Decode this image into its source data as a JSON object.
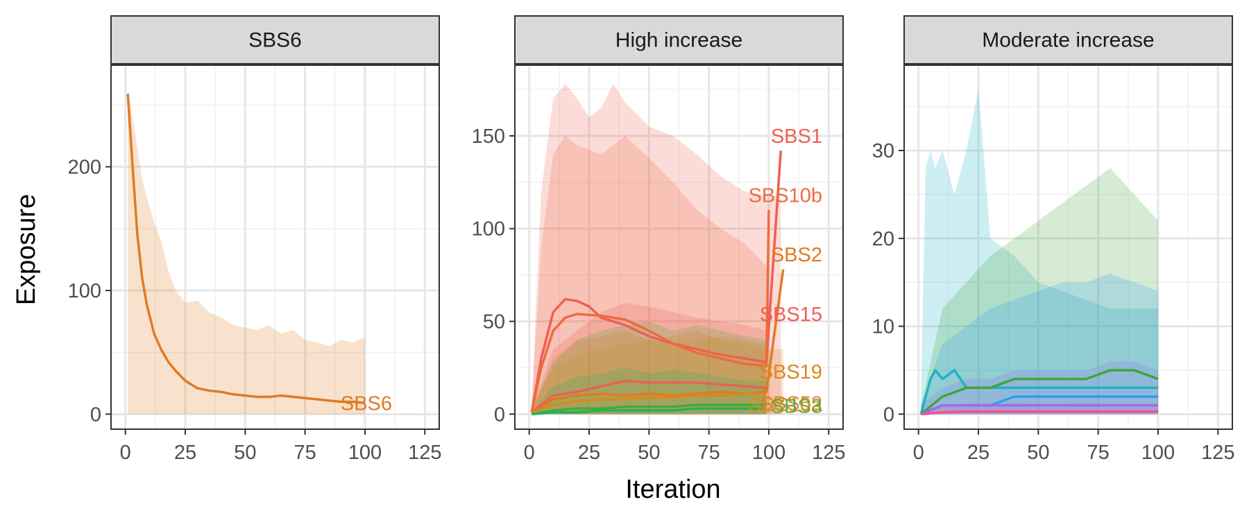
{
  "figure": {
    "xlabel": "Iteration",
    "ylabel": "Exposure"
  },
  "chart_data": [
    {
      "type": "line",
      "panel": "SBS6",
      "title": "SBS6",
      "xlim": [
        0,
        125
      ],
      "ylim": [
        0,
        270
      ],
      "x_ticks": [
        0,
        25,
        50,
        75,
        100,
        125
      ],
      "y_ticks": [
        0,
        100,
        200
      ],
      "grid": true,
      "series": [
        {
          "name": "SBS6",
          "color": "#e07b21",
          "x": [
            1,
            3,
            5,
            7,
            9,
            12,
            15,
            18,
            21,
            25,
            30,
            35,
            40,
            45,
            50,
            55,
            60,
            65,
            70,
            75,
            80,
            85,
            90,
            95,
            100
          ],
          "y": [
            259,
            200,
            145,
            110,
            88,
            65,
            52,
            42,
            35,
            27,
            21,
            19,
            18,
            16,
            15,
            14,
            14,
            15,
            14,
            13,
            12,
            11,
            10,
            10,
            9
          ],
          "band_upper": [
            262,
            240,
            215,
            190,
            175,
            155,
            140,
            115,
            100,
            90,
            92,
            82,
            78,
            72,
            70,
            68,
            72,
            65,
            68,
            60,
            58,
            55,
            60,
            58,
            62
          ],
          "band_lower": [
            0,
            0,
            0,
            0,
            0,
            0,
            0,
            0,
            0,
            0,
            0,
            0,
            0,
            0,
            0,
            0,
            0,
            0,
            0,
            0,
            0,
            0,
            0,
            0,
            0
          ]
        }
      ]
    },
    {
      "type": "line",
      "panel": "High increase",
      "title": "High increase",
      "xlim": [
        0,
        125
      ],
      "ylim": [
        0,
        180
      ],
      "x_ticks": [
        0,
        25,
        50,
        75,
        100,
        125
      ],
      "y_ticks": [
        0,
        50,
        100,
        150
      ],
      "grid": true,
      "series": [
        {
          "name": "SBS1",
          "color": "#ef5f53",
          "x": [
            1,
            5,
            10,
            15,
            20,
            25,
            30,
            35,
            40,
            50,
            60,
            70,
            80,
            90,
            99,
            105
          ],
          "y": [
            1,
            30,
            55,
            62,
            61,
            58,
            52,
            50,
            48,
            42,
            38,
            35,
            32,
            30,
            28,
            142
          ],
          "band_upper": [
            5,
            120,
            170,
            178,
            170,
            160,
            165,
            178,
            168,
            155,
            150,
            140,
            128,
            120,
            118,
            118
          ],
          "band_lower": [
            0,
            0,
            0,
            0,
            0,
            0,
            0,
            0,
            0,
            0,
            0,
            0,
            0,
            0,
            0,
            0
          ]
        },
        {
          "name": "SBS10b",
          "color": "#ee6b3c",
          "x": [
            1,
            5,
            10,
            15,
            20,
            30,
            40,
            50,
            60,
            70,
            80,
            90,
            99,
            100
          ],
          "y": [
            1,
            25,
            45,
            52,
            54,
            53,
            51,
            45,
            38,
            33,
            30,
            27,
            26,
            110
          ],
          "band_upper": [
            5,
            90,
            140,
            150,
            145,
            140,
            150,
            138,
            125,
            110,
            100,
            92,
            80,
            80
          ],
          "band_lower": [
            0,
            0,
            0,
            0,
            0,
            0,
            0,
            0,
            0,
            0,
            0,
            0,
            0,
            0
          ]
        },
        {
          "name": "SBS2",
          "color": "#e07b21",
          "x": [
            1,
            10,
            20,
            30,
            40,
            50,
            60,
            70,
            80,
            90,
            99,
            106
          ],
          "y": [
            1,
            8,
            10,
            11,
            10,
            11,
            10,
            11,
            12,
            11,
            12,
            78
          ],
          "band_upper": [
            3,
            30,
            40,
            42,
            45,
            40,
            42,
            45,
            40,
            38,
            35,
            35
          ],
          "band_lower": [
            0,
            0,
            0,
            0,
            0,
            0,
            0,
            0,
            0,
            0,
            0,
            0
          ]
        },
        {
          "name": "SBS15",
          "color": "#ef5f53",
          "x": [
            1,
            10,
            20,
            30,
            40,
            50,
            60,
            70,
            80,
            90,
            99
          ],
          "y": [
            1,
            10,
            12,
            15,
            18,
            17,
            17,
            17,
            16,
            15,
            14
          ],
          "band_upper": [
            3,
            35,
            45,
            55,
            60,
            58,
            55,
            52,
            50,
            48,
            45
          ],
          "band_lower": [
            0,
            0,
            0,
            0,
            0,
            0,
            0,
            0,
            0,
            0,
            0
          ]
        },
        {
          "name": "SBS19",
          "color": "#d98a1a",
          "x": [
            1,
            10,
            20,
            30,
            40,
            50,
            60,
            70,
            80,
            90,
            99
          ],
          "y": [
            1,
            5,
            7,
            8,
            8,
            9,
            9,
            10,
            10,
            11,
            11
          ],
          "band_upper": [
            3,
            25,
            32,
            35,
            38,
            40,
            38,
            40,
            42,
            40,
            38
          ],
          "band_lower": [
            0,
            0,
            0,
            0,
            0,
            0,
            0,
            0,
            0,
            0,
            0
          ]
        },
        {
          "name": "",
          "color": "#4aa936",
          "x": [
            1,
            10,
            20,
            30,
            40,
            50,
            60,
            70,
            80,
            90,
            99
          ],
          "y": [
            0,
            2,
            3,
            3,
            4,
            4,
            4,
            5,
            5,
            5,
            5
          ],
          "band_upper": [
            2,
            28,
            40,
            45,
            48,
            50,
            45,
            48,
            45,
            42,
            40
          ],
          "band_lower": [
            0,
            0,
            0,
            0,
            0,
            0,
            0,
            0,
            0,
            0,
            0
          ]
        },
        {
          "name": "",
          "color": "#21b35a",
          "x": [
            1,
            10,
            20,
            30,
            40,
            50,
            60,
            70,
            80,
            90,
            99
          ],
          "y": [
            0,
            1,
            1,
            2,
            2,
            2,
            2,
            3,
            3,
            3,
            3
          ],
          "band_upper": [
            1,
            15,
            20,
            22,
            25,
            22,
            24,
            22,
            20,
            18,
            18
          ],
          "band_lower": [
            0,
            0,
            0,
            0,
            0,
            0,
            0,
            0,
            0,
            0,
            0
          ]
        }
      ],
      "overlapping_labels": [
        "SBS52",
        "SBS10a",
        "SBS3"
      ]
    },
    {
      "type": "line",
      "panel": "Moderate increase",
      "title": "Moderate increase",
      "xlim": [
        0,
        125
      ],
      "ylim": [
        0,
        38
      ],
      "x_ticks": [
        0,
        25,
        50,
        75,
        100,
        125
      ],
      "y_ticks": [
        0,
        10,
        20,
        30
      ],
      "grid": true,
      "series": [
        {
          "name": "",
          "color": "#1cb3c4",
          "x": [
            1,
            3,
            5,
            7,
            10,
            15,
            20,
            25,
            30,
            40,
            50,
            60,
            70,
            80,
            90,
            100
          ],
          "y": [
            0,
            2,
            4,
            5,
            4,
            5,
            3,
            3,
            3,
            3,
            3,
            3,
            3,
            3,
            3,
            3
          ],
          "band_upper": [
            2,
            28,
            30,
            28,
            30,
            25,
            30,
            37,
            20,
            18,
            15,
            14,
            13,
            12,
            12,
            12
          ],
          "band_lower": [
            0,
            0,
            0,
            0,
            0,
            0,
            0,
            0,
            0,
            0,
            0,
            0,
            0,
            0,
            0,
            0
          ]
        },
        {
          "name": "",
          "color": "#3fa53a",
          "x": [
            1,
            10,
            20,
            30,
            40,
            50,
            60,
            70,
            80,
            90,
            100
          ],
          "y": [
            0,
            2,
            3,
            3,
            4,
            4,
            4,
            4,
            5,
            5,
            4
          ],
          "band_upper": [
            1,
            12,
            15,
            18,
            20,
            22,
            24,
            26,
            28,
            25,
            22
          ],
          "band_lower": [
            0,
            0,
            0,
            0,
            0,
            0,
            0,
            0,
            0,
            0,
            0
          ]
        },
        {
          "name": "",
          "color": "#2a9df4",
          "x": [
            1,
            10,
            20,
            30,
            40,
            50,
            60,
            70,
            80,
            90,
            100
          ],
          "y": [
            0,
            1,
            1,
            1,
            2,
            2,
            2,
            2,
            2,
            2,
            2
          ],
          "band_upper": [
            1,
            8,
            10,
            12,
            13,
            14,
            15,
            15,
            16,
            15,
            14
          ],
          "band_lower": [
            0,
            0,
            0,
            0,
            0,
            0,
            0,
            0,
            0,
            0,
            0
          ]
        },
        {
          "name": "",
          "color": "#9b6cf0",
          "x": [
            1,
            10,
            20,
            30,
            40,
            50,
            60,
            70,
            80,
            90,
            100
          ],
          "y": [
            0,
            1,
            1,
            1,
            1,
            1,
            1,
            1,
            1,
            1,
            1
          ],
          "band_upper": [
            1,
            3,
            4,
            4,
            5,
            5,
            5,
            5,
            6,
            6,
            5
          ],
          "band_lower": [
            0,
            0,
            0,
            0,
            0,
            0,
            0,
            0,
            0,
            0,
            0
          ]
        },
        {
          "name": "",
          "color": "#f0509a",
          "x": [
            1,
            10,
            20,
            30,
            40,
            50,
            60,
            70,
            80,
            90,
            100
          ],
          "y": [
            0,
            0.2,
            0.3,
            0.3,
            0.3,
            0.3,
            0.3,
            0.3,
            0.3,
            0.3,
            0.3
          ],
          "band_upper": [
            0.5,
            1,
            1.2,
            1.2,
            1.3,
            1.2,
            1.2,
            1.3,
            1.2,
            1.2,
            1.2
          ],
          "band_lower": [
            0,
            0,
            0,
            0,
            0,
            0,
            0,
            0,
            0,
            0,
            0
          ]
        }
      ]
    }
  ]
}
